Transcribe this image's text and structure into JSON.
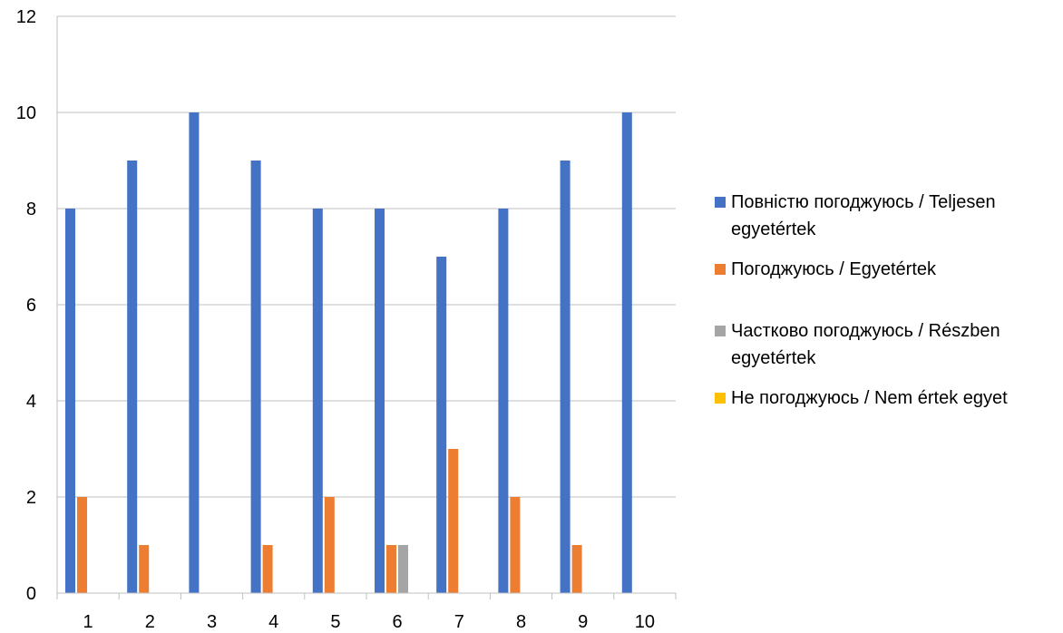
{
  "chart_data": {
    "type": "bar",
    "categories": [
      "1",
      "2",
      "3",
      "4",
      "5",
      "6",
      "7",
      "8",
      "9",
      "10"
    ],
    "series": [
      {
        "name": "Повністю погоджуюсь / Teljesen egyetértek",
        "color": "#4472C4",
        "values": [
          8,
          9,
          10,
          9,
          8,
          8,
          7,
          8,
          9,
          10
        ]
      },
      {
        "name": "Погоджуюсь / Egyetértek",
        "color": "#ED7D31",
        "values": [
          2,
          1,
          0,
          1,
          2,
          1,
          3,
          2,
          1,
          0
        ]
      },
      {
        "name": "Частково погоджуюсь / Részben egyetértek",
        "color": "#A5A5A5",
        "values": [
          0,
          0,
          0,
          0,
          0,
          1,
          0,
          0,
          0,
          0
        ]
      },
      {
        "name": "Не погоджуюсь / Nem értek egyet",
        "color": "#FFC000",
        "values": [
          0,
          0,
          0,
          0,
          0,
          0,
          0,
          0,
          0,
          0
        ]
      }
    ],
    "ylim": [
      0,
      12
    ],
    "yticks": [
      0,
      2,
      4,
      6,
      8,
      10,
      12
    ],
    "grid": true,
    "legend_position": "right",
    "gridline_color": "#BFBFBF",
    "axis_color": "#BFBFBF"
  }
}
